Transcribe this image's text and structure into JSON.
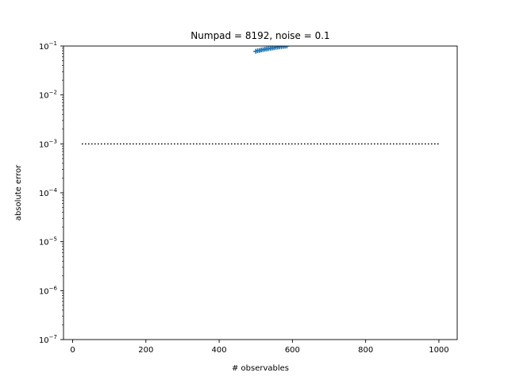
{
  "chart_data": {
    "type": "scatter",
    "title": "Numpad = 8192, noise = 0.1",
    "xlabel": "# observables",
    "ylabel": "absolute error",
    "xlim": [
      -25,
      1050
    ],
    "ylim": [
      1e-07,
      0.1
    ],
    "yscale": "log",
    "grid": false,
    "x_ticks": [
      0,
      200,
      400,
      600,
      800,
      1000
    ],
    "x_tick_labels": [
      "0",
      "200",
      "400",
      "600",
      "800",
      "1000"
    ],
    "y_ticks": [
      1e-07,
      1e-06,
      1e-05,
      0.0001,
      0.001,
      0.01,
      0.1
    ],
    "y_tick_labels": [
      {
        "base": "10",
        "exp": "−7"
      },
      {
        "base": "10",
        "exp": "−6"
      },
      {
        "base": "10",
        "exp": "−5"
      },
      {
        "base": "10",
        "exp": "−4"
      },
      {
        "base": "10",
        "exp": "−3"
      },
      {
        "base": "10",
        "exp": "−2"
      },
      {
        "base": "10",
        "exp": "−1"
      }
    ],
    "series": [
      {
        "style": "markers",
        "color": "#1f77b4",
        "x": [
          500,
          505,
          510,
          515,
          520,
          525,
          530,
          535,
          540,
          545,
          550,
          555,
          560,
          565,
          570,
          575,
          580,
          585
        ],
        "y": [
          0.078,
          0.08,
          0.081,
          0.083,
          0.084,
          0.086,
          0.087,
          0.088,
          0.09,
          0.091,
          0.092,
          0.094,
          0.095,
          0.096,
          0.097,
          0.098,
          0.099,
          0.1
        ]
      },
      {
        "style": "dotted-line",
        "color": "#000000",
        "x": [
          25,
          1000
        ],
        "y": [
          0.001,
          0.001
        ]
      }
    ]
  }
}
